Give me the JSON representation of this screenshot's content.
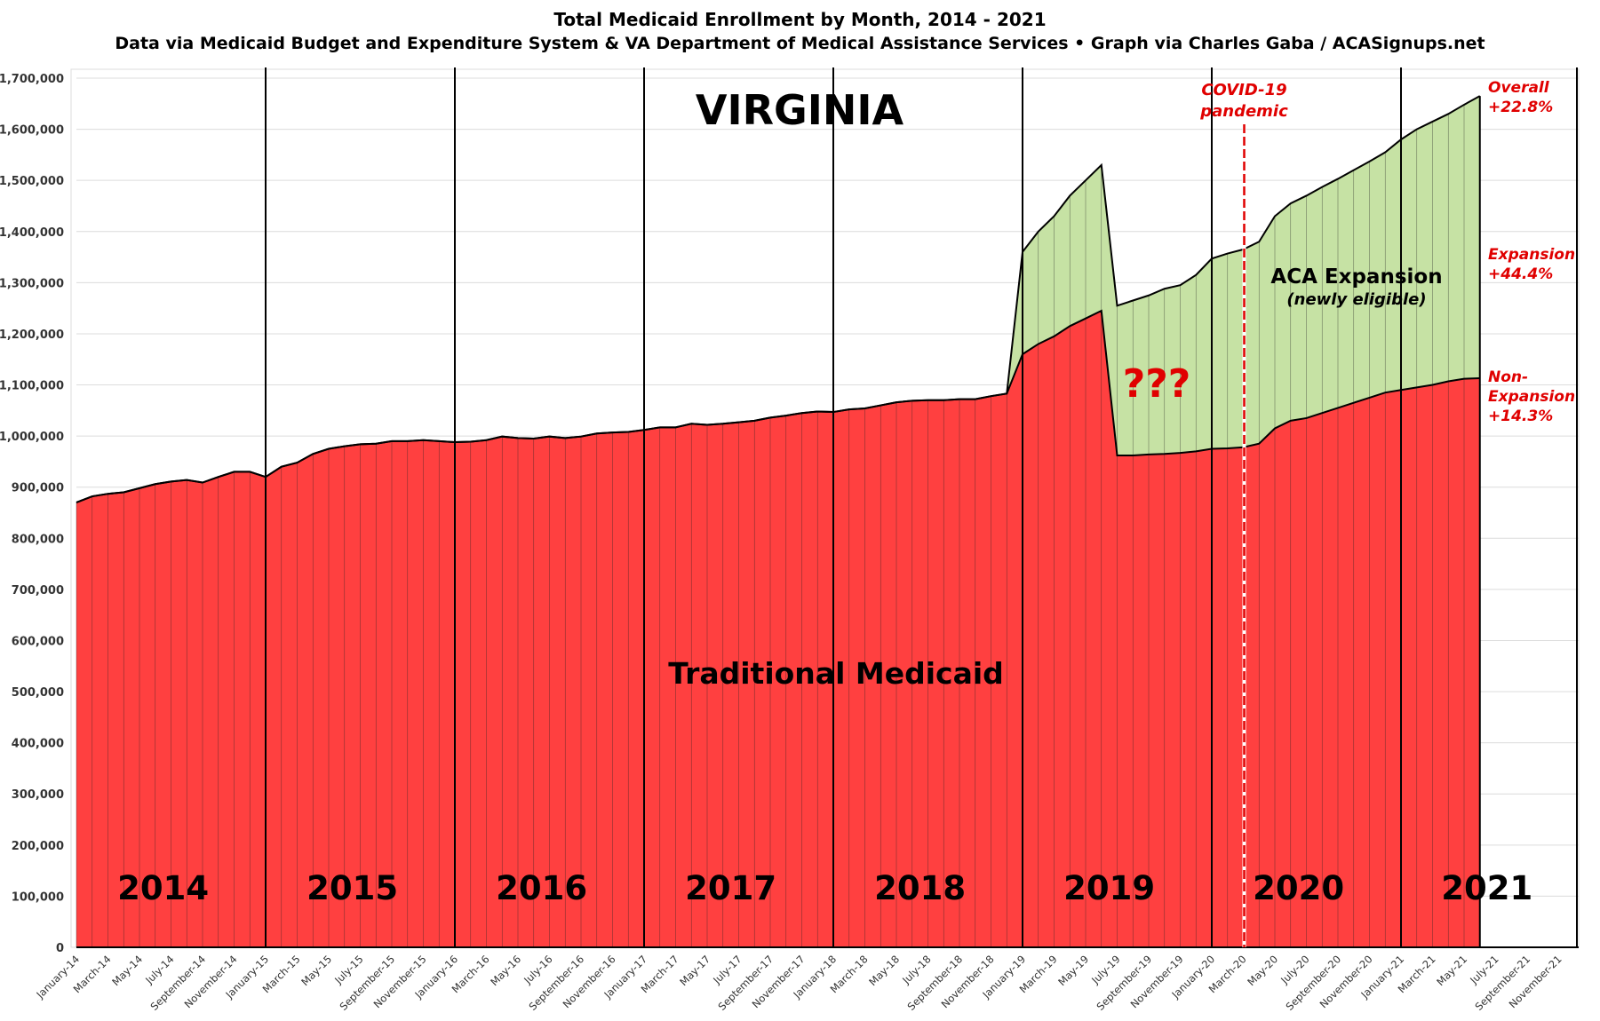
{
  "chart_data": {
    "type": "area",
    "stacked": true,
    "title": "Total Medicaid Enrollment by Month, 2014 - 2021",
    "subtitle": "Data via Medicaid Budget and Expenditure System & VA Department of Medical Assistance Services  •  Graph via Charles Gaba / ACASignups.net",
    "state_label": "VIRGINIA",
    "ylim": [
      0,
      1700000
    ],
    "y_ticks": [
      "0",
      "100,000",
      "200,000",
      "300,000",
      "400,000",
      "500,000",
      "600,000",
      "700,000",
      "800,000",
      "900,000",
      "1,000,000",
      "1,100,000",
      "1,200,000",
      "1,300,000",
      "1,400,000",
      "1,500,000",
      "1,600,000",
      "1,700,000"
    ],
    "x_tick_labels": [
      "January-14",
      "March-14",
      "May-14",
      "July-14",
      "September-14",
      "November-14",
      "January-15",
      "March-15",
      "May-15",
      "July-15",
      "September-15",
      "November-15",
      "January-16",
      "March-16",
      "May-16",
      "July-16",
      "September-16",
      "November-16",
      "January-17",
      "March-17",
      "May-17",
      "July-17",
      "September-17",
      "November-17",
      "January-18",
      "March-18",
      "May-18",
      "July-18",
      "September-18",
      "November-18",
      "January-19",
      "March-19",
      "May-19",
      "July-19",
      "September-19",
      "November-19",
      "January-20",
      "March-20",
      "May-20",
      "July-20",
      "September-20",
      "November-20",
      "January-21",
      "March-21",
      "May-21",
      "July-21",
      "September-21",
      "November-21"
    ],
    "x_range_months": 96,
    "grid": true,
    "series": [
      {
        "name": "Traditional Medicaid",
        "color": "#ff4040",
        "values": [
          870000,
          882000,
          887000,
          890000,
          898000,
          906000,
          911000,
          914000,
          909000,
          920000,
          930000,
          930000,
          920000,
          940000,
          948000,
          965000,
          975000,
          980000,
          984000,
          985000,
          990000,
          990000,
          992000,
          990000,
          988000,
          989000,
          992000,
          999000,
          996000,
          995000,
          999000,
          996000,
          999000,
          1005000,
          1007000,
          1008000,
          1012000,
          1017000,
          1017000,
          1024000,
          1022000,
          1024000,
          1027000,
          1030000,
          1036000,
          1040000,
          1045000,
          1048000,
          1047000,
          1052000,
          1054000,
          1060000,
          1066000,
          1069000,
          1070000,
          1070000,
          1072000,
          1072000,
          1078000,
          1083000,
          1160000,
          1180000,
          1195000,
          1215000,
          1230000,
          1245000,
          962000,
          962000,
          964000,
          965000,
          967000,
          970000,
          975000,
          976000,
          978000,
          985000,
          1015000,
          1030000,
          1035000,
          1045000,
          1055000,
          1065000,
          1075000,
          1085000,
          1090000,
          1095000,
          1100000,
          1107000,
          1112000,
          1113000
        ]
      },
      {
        "name": "ACA Expansion",
        "color": "#c6e2a4",
        "values": [
          0,
          0,
          0,
          0,
          0,
          0,
          0,
          0,
          0,
          0,
          0,
          0,
          0,
          0,
          0,
          0,
          0,
          0,
          0,
          0,
          0,
          0,
          0,
          0,
          0,
          0,
          0,
          0,
          0,
          0,
          0,
          0,
          0,
          0,
          0,
          0,
          0,
          0,
          0,
          0,
          0,
          0,
          0,
          0,
          0,
          0,
          0,
          0,
          0,
          0,
          0,
          0,
          0,
          0,
          0,
          0,
          0,
          0,
          0,
          0,
          200000,
          220000,
          235000,
          255000,
          270000,
          285000,
          293000,
          303000,
          311000,
          323000,
          328000,
          345000,
          372000,
          381000,
          387000,
          395000,
          415000,
          425000,
          435000,
          442000,
          448000,
          455000,
          462000,
          470000,
          490000,
          505000,
          515000,
          523000,
          536000,
          552000
        ]
      }
    ],
    "year_labels": [
      "2014",
      "2015",
      "2016",
      "2017",
      "2018",
      "2019",
      "2020",
      "2021"
    ],
    "annotations": {
      "traditional": "Traditional Medicaid",
      "expansion": "ACA Expansion",
      "expansion_sub": "(newly eligible)",
      "question": "???",
      "covid_line1": "COVID-19",
      "covid_line2": "pandemic",
      "covid_month": "March-20",
      "overall_1": "Overall",
      "overall_2": "+22.8%",
      "exp_1": "Expansion",
      "exp_2": "+44.4%",
      "nonexp_1": "Non-",
      "nonexp_2": "Expansion",
      "nonexp_3": "+14.3%"
    },
    "annotation_color": "#e00000"
  }
}
